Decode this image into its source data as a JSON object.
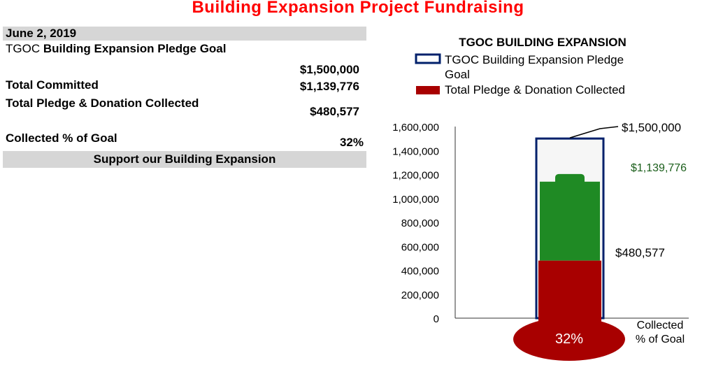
{
  "page_title": "Building Expansion Project Fundraising",
  "summary": {
    "date": "June 2, 2019",
    "rows": [
      {
        "label_prefix": "TGOC",
        "label": " Building Expansion  Pledge Goal",
        "value": "$1,500,000"
      },
      {
        "label_prefix": "",
        "label": "Total Committed",
        "value": "$1,139,776"
      },
      {
        "label_prefix": "",
        "label": "Total Pledge & Donation Collected",
        "value": "$480,577"
      },
      {
        "label_prefix": "",
        "label": "Collected % of Goal",
        "value": "32%"
      }
    ],
    "support_label": "Support our Building Expansion"
  },
  "chart_data": {
    "type": "bar",
    "title": "TGOC BUILDING EXPANSION",
    "legend": [
      {
        "name": "TGOC Building Expansion  Pledge Goal",
        "style": "outline",
        "color": "#00206b"
      },
      {
        "name": "Total Pledge & Donation Collected",
        "style": "filled",
        "color": "#a80000"
      }
    ],
    "categories": [
      "Collected % of Goal"
    ],
    "series": [
      {
        "name": "TGOC Building Expansion  Pledge Goal",
        "values": [
          1500000
        ],
        "label": "$1,500,000"
      },
      {
        "name": "Total Committed",
        "values": [
          1139776
        ],
        "label": "$1,139,776"
      },
      {
        "name": "Total Pledge & Donation Collected",
        "values": [
          480577
        ],
        "label": "$480,577"
      }
    ],
    "ylim": [
      0,
      1600000
    ],
    "y_ticks": [
      0,
      200000,
      400000,
      600000,
      800000,
      1000000,
      1200000,
      1400000,
      1600000
    ],
    "y_tick_labels": [
      "0",
      "200,000",
      "400,000",
      "600,000",
      "800,000",
      "1,000,000",
      "1,200,000",
      "1,400,000",
      "1,600,000"
    ],
    "bulb_label": "32%",
    "colors": {
      "goal_outline": "#00206b",
      "committed": "#1f8a24",
      "collected": "#a80000",
      "committed_label": "#1a5e1a"
    }
  }
}
